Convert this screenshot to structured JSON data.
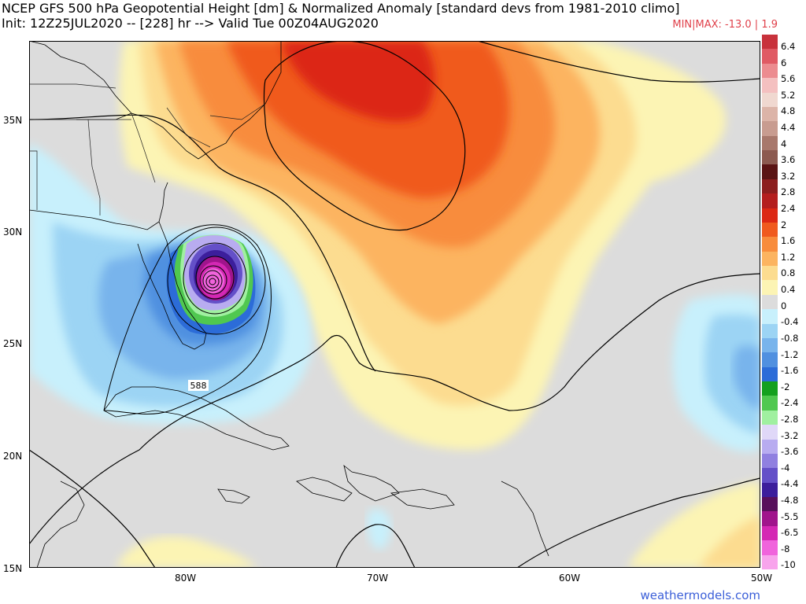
{
  "header": {
    "title": "NCEP GFS 500 hPa Geopotential Height [dm] & Normalized Anomaly [standard devs from 1981-2010 climo]",
    "init_line": "Init: 12Z25JUL2020 -- [228] hr --> Valid Tue 00Z04AUG2020",
    "minmax": "MIN|MAX: -13.0 | 1.9"
  },
  "map": {
    "lat_labels": [
      "35N",
      "30N",
      "25N",
      "20N",
      "15N"
    ],
    "lon_labels": [
      "80W",
      "70W",
      "60W",
      "50W"
    ],
    "contour_label": "588"
  },
  "legend": {
    "labels": [
      "6.4",
      "6",
      "5.6",
      "5.2",
      "4.8",
      "4.4",
      "4",
      "3.6",
      "3.2",
      "2.8",
      "2.4",
      "2",
      "1.6",
      "1.2",
      "0.8",
      "0.4",
      "0",
      "-0.4",
      "-0.8",
      "-1.2",
      "-1.6",
      "-2",
      "-2.4",
      "-2.8",
      "-3.2",
      "-3.6",
      "-4",
      "-4.4",
      "-4.8",
      "-5.5",
      "-6.5",
      "-8",
      "-10"
    ],
    "colors": [
      "#c8323c",
      "#e05a64",
      "#ec8c90",
      "#f4c0c0",
      "#f0d8d0",
      "#dcb4a8",
      "#c89c90",
      "#a8786c",
      "#8c5a50",
      "#5a1414",
      "#8c1e1e",
      "#b41e1e",
      "#dc2814",
      "#f05a1e",
      "#f88c3c",
      "#fcb460",
      "#fcdc90",
      "#fcf4b4",
      "#dcdcdc",
      "#c8f0fc",
      "#9cd4f4",
      "#78b4ec",
      "#5090e0",
      "#2c6cd8",
      "#14a01e",
      "#50c850",
      "#a0f0a0",
      "#e0d8f8",
      "#b8acf0",
      "#9080e0",
      "#6450c8",
      "#3c1e9c",
      "#58105c",
      "#a0148c",
      "#d428b4",
      "#f064dc",
      "#f8a4ec"
    ]
  },
  "credit": "weathermodels.com"
}
